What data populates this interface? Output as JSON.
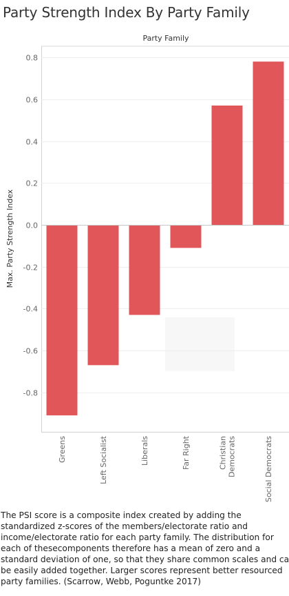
{
  "title": "Party Strength Index By Party Family",
  "chart_data": {
    "type": "bar",
    "header": "Party Family",
    "ylabel": "Max. Party Strength Index",
    "categories": [
      [
        "Greens"
      ],
      [
        "Left Socialist"
      ],
      [
        "Liberals"
      ],
      [
        "Far Right"
      ],
      [
        "Christian",
        "Democrats"
      ],
      [
        "Social Democrats"
      ]
    ],
    "values": [
      -0.91,
      -0.67,
      -0.43,
      -0.11,
      0.57,
      0.78
    ],
    "ylim": [
      -0.95,
      0.85
    ],
    "yticks": [
      0.8,
      0.6,
      0.4,
      0.2,
      0.0,
      -0.2,
      -0.4,
      -0.6,
      -0.8
    ],
    "ytick_labels": [
      "0.8",
      "0.6",
      "0.4",
      "0.2",
      "0.0",
      "-0.2",
      "-0.4",
      "-0.6",
      "-0.8"
    ],
    "grid": true,
    "bar_color": "#e15759"
  },
  "caption_lines": [
    "The PSI score is a composite index created by adding the",
    "standardized z-scores of the members/electorate ratio and",
    "income/electorate ratio for each party family. The distribution for",
    "each of thesecomponents therefore has a mean of zero and a",
    "standard deviation of one, so that they share common scales and can",
    "be easily added together. Larger scores represent better resourced",
    "party families. (Scarrow, Webb, Poguntke 2017)"
  ]
}
